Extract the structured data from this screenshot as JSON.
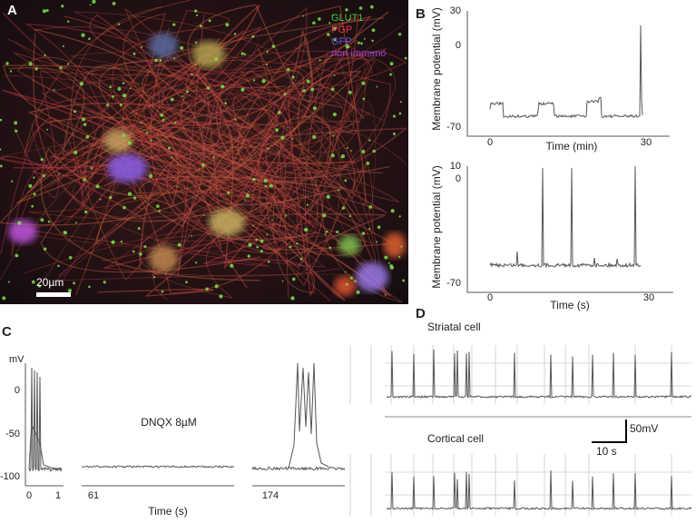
{
  "panel_a": {
    "label": "A",
    "legend": [
      "GLUT1",
      "PGP",
      "GFP",
      "non immuno"
    ],
    "scale_bar": "20µm"
  },
  "panel_b": {
    "label": "B",
    "top": {
      "y_label": "Membrane potential (mV)",
      "x_label": "Time (min)",
      "yticks": [
        30,
        0,
        -70
      ],
      "xticks": [
        0,
        30
      ]
    },
    "bottom": {
      "y_label": "Membrane potential (mV)",
      "x_label": "Time (s)",
      "yticks": [
        10,
        0,
        -70
      ],
      "xticks": [
        0,
        30
      ]
    }
  },
  "panel_c": {
    "label": "C",
    "y_unit": "mV",
    "yticks": [
      0,
      -50,
      -100
    ],
    "xticks": [
      0,
      1,
      61,
      174
    ],
    "x_label": "Time (s)",
    "annotation": "DNQX 8µM"
  },
  "panel_d": {
    "label": "D",
    "traces": [
      "Striatal cell",
      "Cortical cell"
    ],
    "scale_bar_y": "50mV",
    "scale_bar_x": "10 s"
  }
}
